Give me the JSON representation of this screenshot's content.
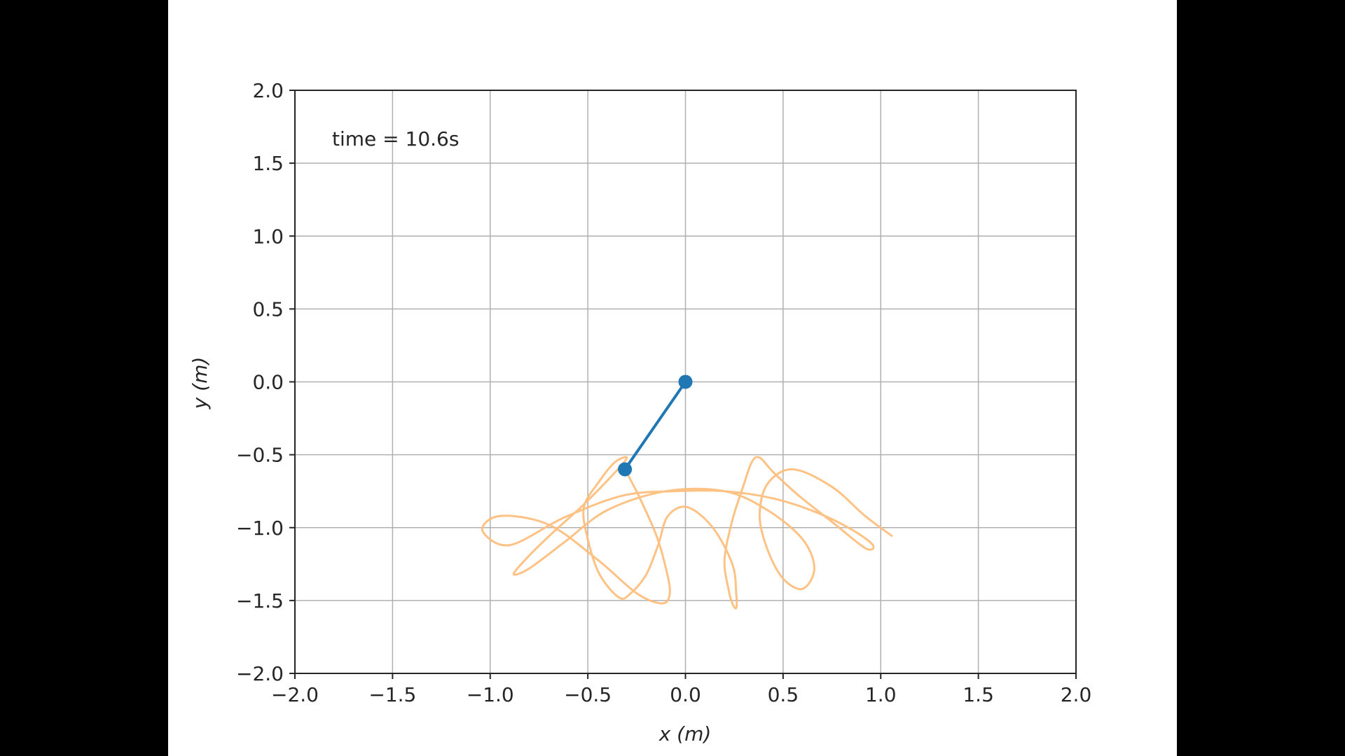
{
  "colors": {
    "letterbox": "#000000",
    "figure_background": "#ffffff",
    "axes_frame": "#262626",
    "grid": "#b0b0b0",
    "pendulum": "#1f77b4",
    "trace": "#ffbb78"
  },
  "chart_data": {
    "type": "line",
    "title": "",
    "xlabel": "x (m)",
    "ylabel": "y (m)",
    "xlim": [
      -2.0,
      2.0
    ],
    "ylim": [
      -2.0,
      2.0
    ],
    "xticks": [
      "−2.0",
      "−1.5",
      "−1.0",
      "−0.5",
      "0.0",
      "0.5",
      "1.0",
      "1.5",
      "2.0"
    ],
    "yticks": [
      "2.0",
      "1.5",
      "1.0",
      "0.5",
      "0.0",
      "−0.5",
      "−1.0",
      "−1.5",
      "−2.0"
    ],
    "grid": true,
    "legend": "none",
    "annotation": "time = 10.6s",
    "series": [
      {
        "kind": "pendulum-arm",
        "x": [
          0.0,
          -0.31
        ],
        "y": [
          0.0,
          -0.6
        ]
      },
      {
        "kind": "trace",
        "x": [
          -0.31,
          -0.24,
          -0.15,
          -0.1,
          -0.08,
          -0.12,
          -0.25,
          -0.45,
          -0.7,
          -0.95,
          -1.04,
          -0.9,
          -0.62,
          -0.32,
          -0.05,
          0.2,
          0.45,
          0.68,
          0.86,
          0.96,
          0.92,
          0.75,
          0.58,
          0.45,
          0.38,
          0.34,
          0.3,
          0.24,
          0.2,
          0.22,
          0.24,
          0.26,
          0.26,
          0.24,
          0.14,
          0.01,
          -0.09,
          -0.14,
          -0.2,
          -0.28,
          -0.34,
          -0.44,
          -0.5,
          -0.52,
          -0.44,
          -0.36,
          -0.3,
          -0.36,
          -0.52,
          -0.7,
          -0.82,
          -0.88,
          -0.8,
          -0.62,
          -0.4,
          -0.1,
          0.2,
          0.42,
          0.6,
          0.66,
          0.6,
          0.5,
          0.42,
          0.38,
          0.42,
          0.55,
          0.75,
          0.92,
          1.06
        ],
        "y": [
          -0.6,
          -0.78,
          -1.05,
          -1.28,
          -1.45,
          -1.52,
          -1.45,
          -1.22,
          -0.98,
          -0.92,
          -1.02,
          -1.12,
          -0.93,
          -0.78,
          -0.75,
          -0.75,
          -0.8,
          -0.9,
          -1.02,
          -1.12,
          -1.14,
          -0.96,
          -0.78,
          -0.62,
          -0.52,
          -0.55,
          -0.7,
          -0.95,
          -1.22,
          -1.42,
          -1.52,
          -1.55,
          -1.45,
          -1.25,
          -1.0,
          -0.86,
          -0.92,
          -1.12,
          -1.32,
          -1.45,
          -1.48,
          -1.32,
          -1.08,
          -0.86,
          -0.68,
          -0.55,
          -0.52,
          -0.62,
          -0.84,
          -1.06,
          -1.22,
          -1.32,
          -1.28,
          -1.1,
          -0.88,
          -0.75,
          -0.75,
          -0.88,
          -1.08,
          -1.28,
          -1.42,
          -1.35,
          -1.15,
          -0.92,
          -0.7,
          -0.6,
          -0.72,
          -0.92,
          -1.06
        ]
      }
    ],
    "pendulum_pivot": {
      "x": 0.0,
      "y": 0.0
    },
    "pendulum_bob": {
      "x": -0.31,
      "y": -0.6
    }
  }
}
